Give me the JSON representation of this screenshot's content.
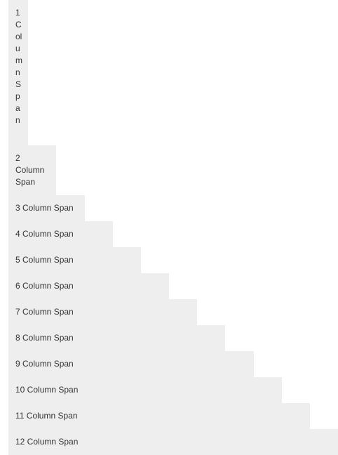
{
  "grid": {
    "background_color": "#eeeeee",
    "text_color": "#333333",
    "cells": [
      {
        "label": "1 Column Span"
      },
      {
        "label": "2 Column Span"
      },
      {
        "label": "3 Column Span"
      },
      {
        "label": "4 Column Span"
      },
      {
        "label": "5 Column Span"
      },
      {
        "label": "6 Column Span"
      },
      {
        "label": "7 Column Span"
      },
      {
        "label": "8 Column Span"
      },
      {
        "label": "9 Column Span"
      },
      {
        "label": "10 Column Span"
      },
      {
        "label": "11 Column Span"
      },
      {
        "label": "12 Column Span"
      }
    ]
  }
}
